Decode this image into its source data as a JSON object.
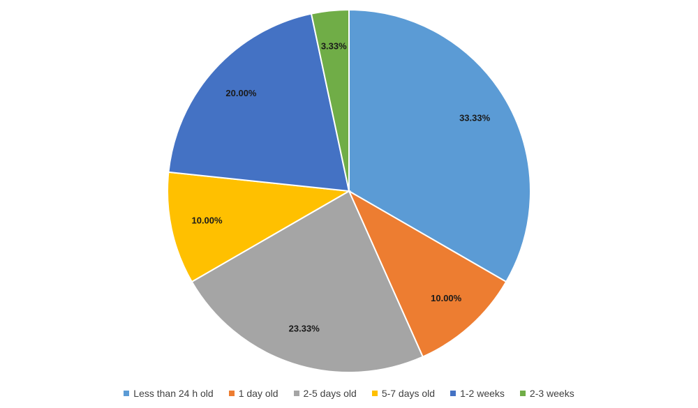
{
  "chart_data": {
    "type": "pie",
    "title": "",
    "slices": [
      {
        "name": "Less than 24 h old",
        "value": 33.33,
        "label": "33.33%",
        "color": "#5b9bd5"
      },
      {
        "name": "1 day old",
        "value": 10.0,
        "label": "10.00%",
        "color": "#ed7d31"
      },
      {
        "name": "2-5 days old",
        "value": 23.33,
        "label": "23.33%",
        "color": "#a5a5a5"
      },
      {
        "name": "5-7 days old",
        "value": 10.0,
        "label": "10.00%",
        "color": "#ffc000"
      },
      {
        "name": "1-2 weeks",
        "value": 20.0,
        "label": "20.00%",
        "color": "#4472c4"
      },
      {
        "name": "2-3 weeks",
        "value": 3.33,
        "label": "3.33%",
        "color": "#70ad47"
      }
    ],
    "start_angle": "12 o'clock",
    "direction": "clockwise",
    "legend_position": "bottom"
  }
}
